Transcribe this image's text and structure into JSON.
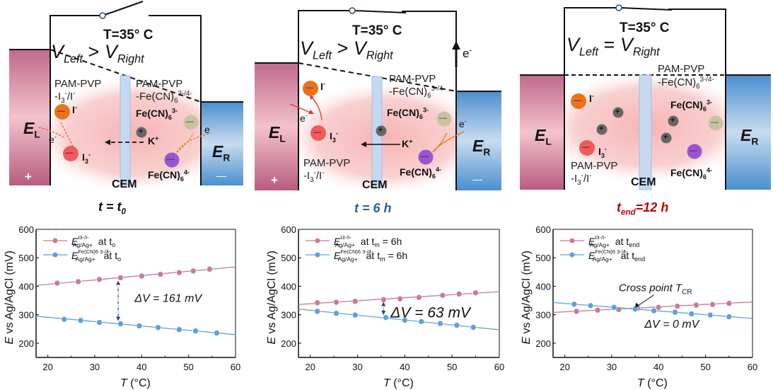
{
  "panels": [
    {
      "temperature": "T=35° C",
      "voltage_relation": ">",
      "v_left": "V",
      "v_left_sub": "Left",
      "v_right": "V",
      "v_right_sub": "Right",
      "left_electrode": "E",
      "left_electrode_sub": "L",
      "right_electrode": "E",
      "right_electrode_sub": "R",
      "left_sign": "+",
      "right_sign": "—",
      "membrane": "CEM",
      "right_gel_line1": "PAM-PVP",
      "right_gel_line2": "-Fe(CN)",
      "right_gel_sub": "6",
      "right_gel_sup": "3-/4-",
      "left_gel_line1": "PAM-PVP",
      "left_gel_line2a": "-I",
      "left_gel_sub": "3",
      "left_gel_sup": "-",
      "left_gel_line2b": "/I",
      "left_gel_sup2": "-",
      "ion_iodide": "I",
      "ion_triiodide": "I",
      "ion_ferricyanide": "Fe(CN)",
      "ion_ferrocyanide": "Fe(CN)",
      "ion_potassium": "K",
      "electron": "e",
      "caption_main": "t = t",
      "caption_sub": "0",
      "caption_color": "#111111"
    },
    {
      "temperature": "T=35° C",
      "voltage_relation": ">",
      "caption_main": "t = 6 h",
      "caption_color": "#2e5f8a"
    },
    {
      "temperature": "T=35° C",
      "voltage_relation": "=",
      "caption_main": "t",
      "caption_sub": "end",
      "caption_rest": "=12 h",
      "caption_color": "#c00000"
    }
  ],
  "symbols": {
    "minus": "—",
    "plus": "+",
    "sup_minus": "-",
    "sup_plus": "+",
    "sup_3minus": "3-",
    "sup_4minus": "4-",
    "sub_3": "3",
    "sub_6": "6"
  },
  "colors": {
    "left_electrode": "#c06a8c",
    "right_electrode": "#4a8fd0",
    "iodide": "#e8731c",
    "triiodide": "#f05a5a",
    "ferricyanide": "#c8c4a0",
    "ferrocyanide": "#9a55d0",
    "potassium": "#666666",
    "series_i": "#c97b95",
    "series_fe": "#5da0e0",
    "membrane": "#c6d8f0"
  },
  "chart_data": [
    {
      "type": "scatter",
      "title": "",
      "xlabel": "T (°C)",
      "ylabel": "E vs Ag/AgCl (mV)",
      "xlim": [
        17.5,
        60
      ],
      "ylim": [
        150,
        600
      ],
      "xticks": [
        20,
        30,
        40,
        50,
        60
      ],
      "yticks": [
        200,
        300,
        400,
        500,
        600
      ],
      "legend_position": "top-left",
      "annotation": "ΔV = 161 mV",
      "arrow_at_x": 35,
      "series": [
        {
          "name": "E Ag/Ag+ (I3-/I-) at t0",
          "legend_tail": "at t",
          "legend_tail_sub": "o",
          "sup": "I3-/I-",
          "color": "#c97b95",
          "x": [
            22,
            26.5,
            31,
            35.5,
            40,
            44,
            48,
            51,
            54.5
          ],
          "y": [
            411,
            416,
            424,
            430,
            436,
            442,
            448,
            454,
            460
          ],
          "fit": [
            [
              17.5,
              403
            ],
            [
              60,
              468
            ]
          ]
        },
        {
          "name": "E Ag/Ag+ (Fe(CN)6 3-/4-) at t0",
          "legend_tail": "at t",
          "legend_tail_sub": "o",
          "sup": "Fe(CN)6 3-/4-",
          "color": "#5da0e0",
          "x": [
            23.5,
            27,
            31,
            35.5,
            39.5,
            43.5,
            48,
            51.5,
            56
          ],
          "y": [
            284,
            280,
            273,
            268,
            261,
            255,
            248,
            243,
            236
          ],
          "fit": [
            [
              17.5,
              295
            ],
            [
              60,
              230
            ]
          ]
        }
      ]
    },
    {
      "type": "scatter",
      "title": "",
      "xlabel": "T (°C)",
      "ylabel": "E vs Ag/AgCl (mV)",
      "xlim": [
        17.5,
        60
      ],
      "ylim": [
        150,
        600
      ],
      "xticks": [
        20,
        30,
        40,
        50,
        60
      ],
      "yticks": [
        200,
        300,
        400,
        500,
        600
      ],
      "legend_position": "top-left",
      "annotation": "ΔV = 63 mV",
      "arrow_at_x": 35.5,
      "series": [
        {
          "name": "E Ag/Ag+ (I3-/I-) at tm = 6h",
          "legend_tail": "at t",
          "legend_tail_sub": "m",
          "legend_tail_rest": " = 6h",
          "color": "#c97b95",
          "x": [
            21.5,
            25.5,
            29.5,
            35.5,
            39,
            43,
            48,
            51.5,
            55
          ],
          "y": [
            342,
            344,
            347,
            353,
            356,
            361,
            368,
            373,
            377
          ],
          "fit": [
            [
              17.5,
              336
            ],
            [
              60,
              381
            ]
          ]
        },
        {
          "name": "E Ag/Ag+ (Fe(CN)6 3-/4-) at tm = 6h",
          "legend_tail": "at t",
          "legend_tail_sub": "m",
          "legend_tail_rest": " = 6h",
          "color": "#5da0e0",
          "x": [
            21.5,
            25.5,
            29.5,
            36,
            40,
            43.5,
            47.5,
            51,
            54.5
          ],
          "y": [
            312,
            305,
            299,
            290,
            281,
            276,
            269,
            263,
            256
          ],
          "fit": [
            [
              17.5,
              320
            ],
            [
              60,
              247
            ]
          ]
        }
      ]
    },
    {
      "type": "scatter",
      "title": "",
      "xlabel": "T (°C)",
      "ylabel": "E vs Ag/AgCl (mV)",
      "xlim": [
        17.5,
        60
      ],
      "ylim": [
        150,
        600
      ],
      "xticks": [
        20,
        30,
        40,
        50,
        60
      ],
      "yticks": [
        200,
        300,
        400,
        500,
        600
      ],
      "legend_position": "top-left",
      "annotation": "ΔV = 0 mV",
      "cross_label": "Cross point T",
      "cross_label_sub": "CR",
      "series": [
        {
          "name": "E Ag/Ag+ (I3-/I-) at tend",
          "legend_tail": "at t",
          "legend_tail_sub": "end",
          "color": "#c97b95",
          "x": [
            22.5,
            27,
            31.5,
            35.5,
            40,
            44,
            48,
            51.5,
            55
          ],
          "y": [
            312,
            316,
            318,
            323,
            326,
            330,
            334,
            336,
            340
          ],
          "fit": [
            [
              17.5,
              308
            ],
            [
              60,
              345
            ]
          ]
        },
        {
          "name": "E Ag/Ag+ (Fe(CN)6 3-/4-) at tend",
          "legend_tail": "at t",
          "legend_tail_sub": "end",
          "color": "#5da0e0",
          "x": [
            22,
            25.5,
            30.5,
            35,
            39,
            43.5,
            47,
            51,
            55
          ],
          "y": [
            337,
            332,
            326,
            320,
            314,
            309,
            303,
            299,
            293
          ],
          "fit": [
            [
              17.5,
              343
            ],
            [
              60,
              287
            ]
          ]
        }
      ]
    }
  ]
}
